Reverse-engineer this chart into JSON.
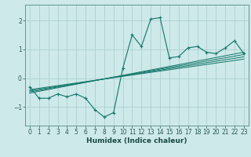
{
  "xlabel": "Humidex (Indice chaleur)",
  "ylabel": "",
  "bg_color": "#cde9e9",
  "grid_color": "#afd0d0",
  "line_color": "#1a7a6e",
  "xlim": [
    -0.5,
    23.5
  ],
  "ylim": [
    -1.65,
    2.55
  ],
  "xticks": [
    0,
    1,
    2,
    3,
    4,
    5,
    6,
    7,
    8,
    9,
    10,
    11,
    12,
    13,
    14,
    15,
    16,
    17,
    18,
    19,
    20,
    21,
    22,
    23
  ],
  "yticks": [
    -1,
    0,
    1,
    2
  ],
  "main_x": [
    0,
    1,
    2,
    3,
    4,
    5,
    6,
    7,
    8,
    9,
    10,
    11,
    12,
    13,
    14,
    15,
    16,
    17,
    18,
    19,
    20,
    21,
    22,
    23
  ],
  "main_y": [
    -0.3,
    -0.7,
    -0.7,
    -0.55,
    -0.65,
    -0.55,
    -0.7,
    -1.1,
    -1.35,
    -1.2,
    0.35,
    1.5,
    1.1,
    2.05,
    2.1,
    0.7,
    0.75,
    1.05,
    1.1,
    0.9,
    0.85,
    1.05,
    1.3,
    0.85
  ],
  "reg_lines": [
    {
      "x": [
        0,
        23
      ],
      "y": [
        -0.52,
        0.9
      ]
    },
    {
      "x": [
        0,
        23
      ],
      "y": [
        -0.48,
        0.82
      ]
    },
    {
      "x": [
        0,
        23
      ],
      "y": [
        -0.44,
        0.74
      ]
    },
    {
      "x": [
        0,
        23
      ],
      "y": [
        -0.4,
        0.66
      ]
    }
  ],
  "tick_fontsize": 5.5,
  "label_fontsize": 6.5
}
